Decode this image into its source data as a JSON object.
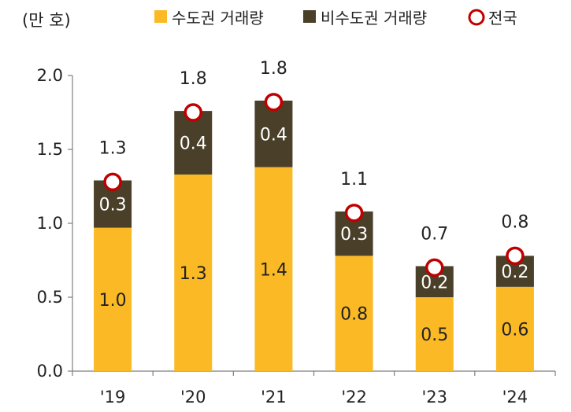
{
  "chart_data": {
    "type": "bar",
    "stacked": true,
    "unit_label": "(만 호)",
    "categories": [
      "'19",
      "'20",
      "'21",
      "'22",
      "'23",
      "'24"
    ],
    "series": [
      {
        "name": "수도권 거래량",
        "color": "#FBBA25",
        "values": [
          0.97,
          1.33,
          1.38,
          0.78,
          0.5,
          0.57
        ],
        "labels": [
          "1.0",
          "1.3",
          "1.4",
          "0.8",
          "0.5",
          "0.6"
        ]
      },
      {
        "name": "비수도권 거래량",
        "color": "#4A3F28",
        "values": [
          0.32,
          0.43,
          0.45,
          0.3,
          0.21,
          0.21
        ],
        "labels": [
          "0.3",
          "0.4",
          "0.4",
          "0.3",
          "0.2",
          "0.2"
        ]
      }
    ],
    "total": {
      "name": "전국",
      "marker_color": "#C00000",
      "values": [
        1.28,
        1.75,
        1.82,
        1.07,
        0.7,
        0.78
      ],
      "labels": [
        "1.3",
        "1.8",
        "1.8",
        "1.1",
        "0.7",
        "0.8"
      ]
    },
    "ylim": [
      0,
      2.0
    ],
    "yticks": [
      "0.0",
      "0.5",
      "1.0",
      "1.5",
      "2.0"
    ],
    "xlabel": "",
    "ylabel": "",
    "legend_position": "top",
    "grid": false
  }
}
